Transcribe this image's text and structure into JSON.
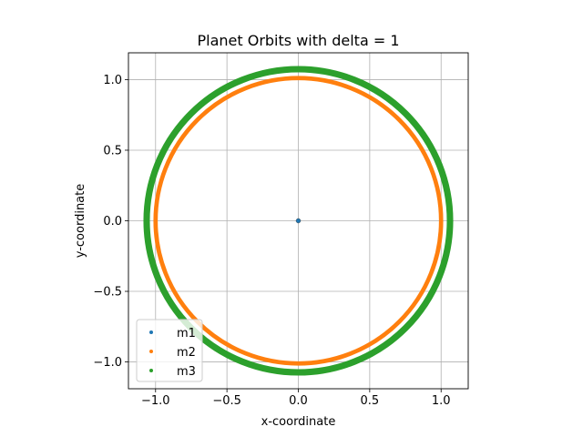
{
  "chart_data": {
    "type": "scatter",
    "title": "Planet Orbits with delta = 1",
    "xlabel": "x-coordinate",
    "ylabel": "y-coordinate",
    "xlim": [
      -1.19,
      1.19
    ],
    "ylim": [
      -1.19,
      1.19
    ],
    "xticks": [
      -1.0,
      -0.5,
      0.0,
      0.5,
      1.0
    ],
    "yticks": [
      -1.0,
      -0.5,
      0.0,
      0.5,
      1.0
    ],
    "xtick_labels": [
      "−1.0",
      "−0.5",
      "0.0",
      "0.5",
      "1.0"
    ],
    "ytick_labels": [
      "−1.0",
      "−0.5",
      "0.0",
      "0.5",
      "1.0"
    ],
    "grid": true,
    "legend_position": "lower-left",
    "series": [
      {
        "name": "m1",
        "color": "#1f77b4",
        "shape": "point",
        "center": [
          0.0,
          0.0
        ]
      },
      {
        "name": "m2",
        "color": "#ff7f0e",
        "shape": "ring",
        "radius_inner": 0.985,
        "radius_outer": 1.015
      },
      {
        "name": "m3",
        "color": "#2ca02c",
        "shape": "ring",
        "radius_inner": 1.04,
        "radius_outer": 1.085
      }
    ]
  }
}
